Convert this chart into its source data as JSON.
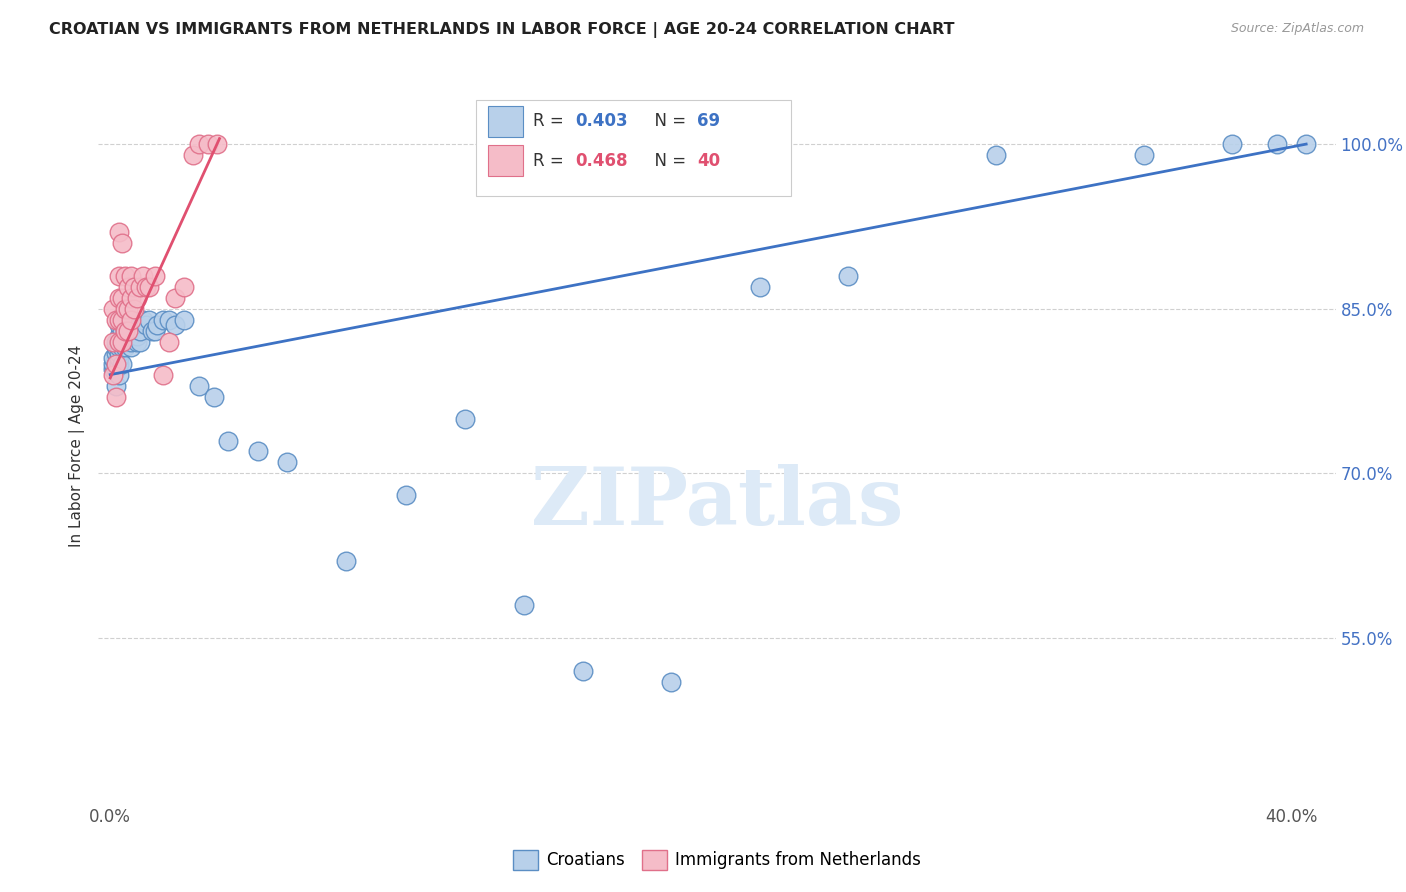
{
  "title": "CROATIAN VS IMMIGRANTS FROM NETHERLANDS IN LABOR FORCE | AGE 20-24 CORRELATION CHART",
  "source": "Source: ZipAtlas.com",
  "ylabel": "In Labor Force | Age 20-24",
  "xlim": [
    -0.004,
    0.415
  ],
  "ylim": [
    0.4,
    1.05
  ],
  "ytick_positions": [
    0.55,
    0.7,
    0.85,
    1.0
  ],
  "ytick_labels": [
    "55.0%",
    "70.0%",
    "85.0%",
    "100.0%"
  ],
  "blue_color": "#b8d0ea",
  "blue_edge_color": "#5b8ec4",
  "pink_color": "#f5bcc8",
  "pink_edge_color": "#e0708a",
  "blue_line_color": "#3d72c4",
  "pink_line_color": "#e05070",
  "watermark": "ZIPatlas",
  "blue_scatter_x": [
    0.001,
    0.001,
    0.001,
    0.002,
    0.002,
    0.002,
    0.002,
    0.002,
    0.002,
    0.003,
    0.003,
    0.003,
    0.003,
    0.003,
    0.003,
    0.003,
    0.003,
    0.004,
    0.004,
    0.004,
    0.004,
    0.004,
    0.005,
    0.005,
    0.005,
    0.005,
    0.005,
    0.006,
    0.006,
    0.006,
    0.007,
    0.007,
    0.007,
    0.007,
    0.008,
    0.008,
    0.009,
    0.009,
    0.009,
    0.01,
    0.01,
    0.011,
    0.012,
    0.013,
    0.014,
    0.015,
    0.016,
    0.018,
    0.02,
    0.022,
    0.025,
    0.03,
    0.035,
    0.04,
    0.05,
    0.06,
    0.08,
    0.1,
    0.12,
    0.14,
    0.16,
    0.19,
    0.22,
    0.25,
    0.3,
    0.35,
    0.38,
    0.395,
    0.405
  ],
  "blue_scatter_y": [
    0.795,
    0.8,
    0.805,
    0.78,
    0.795,
    0.8,
    0.81,
    0.815,
    0.82,
    0.79,
    0.8,
    0.805,
    0.81,
    0.815,
    0.82,
    0.825,
    0.835,
    0.8,
    0.815,
    0.82,
    0.83,
    0.84,
    0.815,
    0.82,
    0.83,
    0.84,
    0.845,
    0.82,
    0.83,
    0.84,
    0.815,
    0.82,
    0.83,
    0.84,
    0.825,
    0.835,
    0.82,
    0.825,
    0.835,
    0.82,
    0.83,
    0.84,
    0.835,
    0.84,
    0.83,
    0.83,
    0.835,
    0.84,
    0.84,
    0.835,
    0.84,
    0.78,
    0.77,
    0.73,
    0.72,
    0.71,
    0.62,
    0.68,
    0.75,
    0.58,
    0.52,
    0.51,
    0.87,
    0.88,
    0.99,
    0.99,
    1.0,
    1.0,
    1.0
  ],
  "pink_scatter_x": [
    0.001,
    0.001,
    0.001,
    0.002,
    0.002,
    0.002,
    0.003,
    0.003,
    0.003,
    0.003,
    0.003,
    0.004,
    0.004,
    0.004,
    0.004,
    0.005,
    0.005,
    0.005,
    0.006,
    0.006,
    0.006,
    0.007,
    0.007,
    0.007,
    0.008,
    0.008,
    0.009,
    0.01,
    0.011,
    0.012,
    0.013,
    0.015,
    0.018,
    0.02,
    0.022,
    0.025,
    0.028,
    0.03,
    0.033,
    0.036
  ],
  "pink_scatter_y": [
    0.79,
    0.82,
    0.85,
    0.77,
    0.8,
    0.84,
    0.82,
    0.84,
    0.86,
    0.88,
    0.92,
    0.82,
    0.84,
    0.86,
    0.91,
    0.83,
    0.85,
    0.88,
    0.83,
    0.85,
    0.87,
    0.84,
    0.86,
    0.88,
    0.85,
    0.87,
    0.86,
    0.87,
    0.88,
    0.87,
    0.87,
    0.88,
    0.79,
    0.82,
    0.86,
    0.87,
    0.99,
    1.0,
    1.0,
    1.0
  ],
  "blue_trend_x": [
    0.0,
    0.405
  ],
  "blue_trend_y": [
    0.79,
    1.0
  ],
  "pink_trend_x": [
    0.0,
    0.037
  ],
  "pink_trend_y": [
    0.787,
    1.005
  ]
}
